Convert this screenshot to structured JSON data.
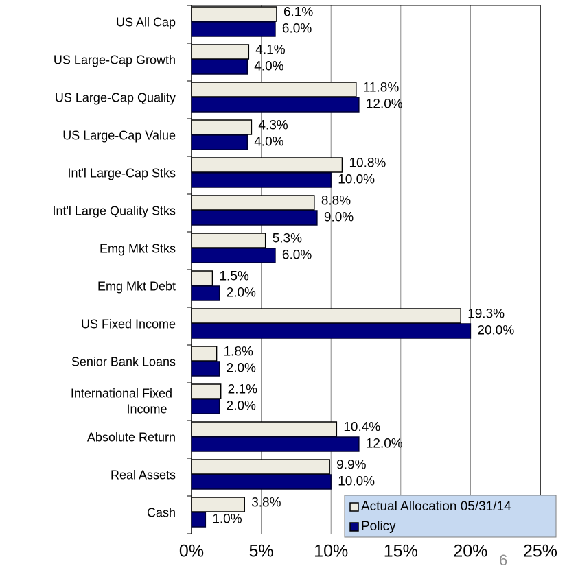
{
  "chart_data": {
    "type": "bar",
    "orientation": "horizontal",
    "categories": [
      "US All Cap",
      "US Large-Cap Growth",
      "US Large-Cap Quality",
      "US Large-Cap Value",
      "Int'l Large-Cap Stks",
      "Int'l Large Quality Stks",
      "Emg Mkt Stks",
      "Emg Mkt Debt",
      "US Fixed Income",
      "Senior Bank Loans",
      "International Fixed Income",
      "Absolute Return",
      "Real Assets",
      "Cash"
    ],
    "series": [
      {
        "name": "Actual Allocation 05/31/14",
        "color": "#eeece1",
        "values": [
          6.1,
          4.1,
          11.8,
          4.3,
          10.8,
          8.8,
          5.3,
          1.5,
          19.3,
          1.8,
          2.1,
          10.4,
          9.9,
          3.8
        ],
        "value_labels": [
          "6.1%",
          "4.1%",
          "11.8%",
          "4.3%",
          "10.8%",
          "8.8%",
          "5.3%",
          "1.5%",
          "19.3%",
          "1.8%",
          "2.1%",
          "10.4%",
          "9.9%",
          "3.8%"
        ]
      },
      {
        "name": "Policy",
        "color": "#000080",
        "values": [
          6.0,
          4.0,
          12.0,
          4.0,
          10.0,
          9.0,
          6.0,
          2.0,
          20.0,
          2.0,
          2.0,
          12.0,
          10.0,
          1.0
        ],
        "value_labels": [
          "6.0%",
          "4.0%",
          "12.0%",
          "4.0%",
          "10.0%",
          "9.0%",
          "6.0%",
          "2.0%",
          "20.0%",
          "2.0%",
          "2.0%",
          "12.0%",
          "10.0%",
          "1.0%"
        ]
      }
    ],
    "xlim": [
      0,
      25
    ],
    "xticks": [
      {
        "value": 0,
        "label": "0%"
      },
      {
        "value": 5,
        "label": "5%"
      },
      {
        "value": 10,
        "label": "10%"
      },
      {
        "value": 15,
        "label": "15%"
      },
      {
        "value": 20,
        "label": "20%"
      },
      {
        "value": 25,
        "label": "25%"
      }
    ],
    "grid": true,
    "legend": "lower right",
    "page_number": "6"
  }
}
